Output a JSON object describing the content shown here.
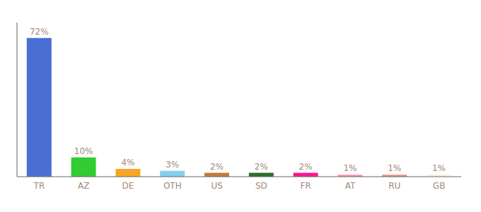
{
  "chart_data": {
    "type": "bar",
    "categories": [
      "TR",
      "AZ",
      "DE",
      "OTH",
      "US",
      "SD",
      "FR",
      "AT",
      "RU",
      "GB"
    ],
    "values": [
      72,
      10,
      4,
      3,
      2,
      2,
      2,
      1,
      1,
      1
    ],
    "value_labels": [
      "72%",
      "10%",
      "4%",
      "3%",
      "2%",
      "2%",
      "2%",
      "1%",
      "1%",
      "1%"
    ],
    "colors": [
      "#4a6fd4",
      "#33cc33",
      "#f5a623",
      "#87ceeb",
      "#c47a3a",
      "#2d6e2d",
      "#ff1493",
      "#ff91b0",
      "#e8917a",
      "#f5f5dc"
    ],
    "ylim": [
      0,
      80
    ],
    "grid": false,
    "data_labels": true,
    "tick_labels": "x"
  }
}
